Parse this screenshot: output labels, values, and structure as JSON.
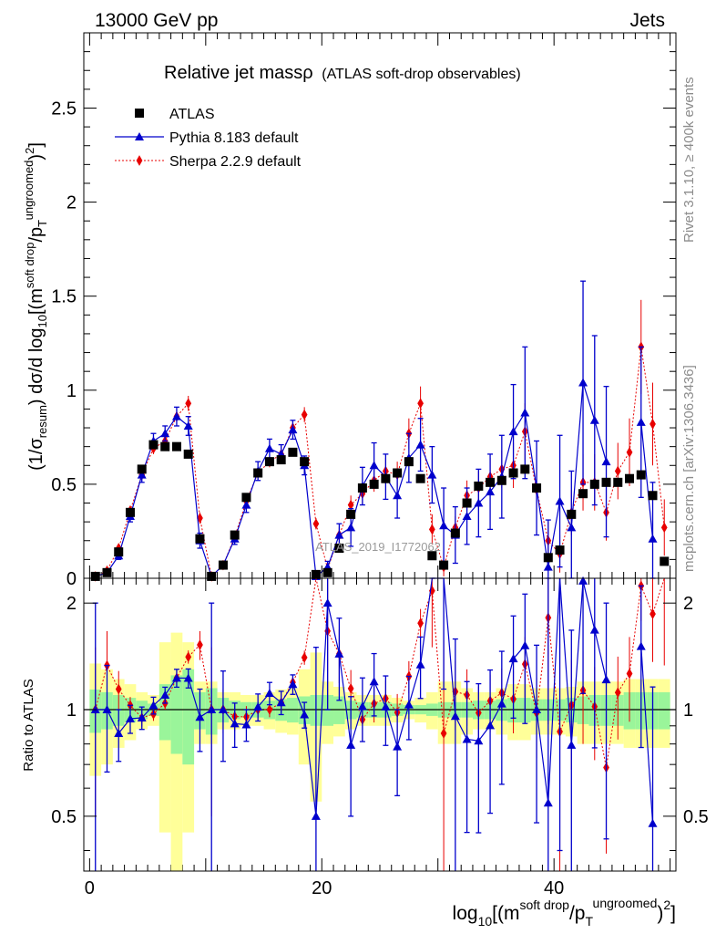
{
  "header": {
    "left": "13000 GeV pp",
    "right": "Jets",
    "title": "Relative jet mass",
    "title_symbol": "ρ",
    "title_note": "(ATLAS soft-drop observables)"
  },
  "side_labels": {
    "rivet": "Rivet 3.1.10, ≥ 400k events",
    "mcplots": "mcplots.cern.ch [arXiv:1306.3436]"
  },
  "watermark": "ATLAS_2019_I1772062",
  "axes": {
    "ylabel_main": "(1/σresum) dσ/d log10[(m soft drop/pT ungroomed)²]",
    "ylabel_main_parts": {
      "a": "(1/σ",
      "a_sub": "resum",
      "b": ") dσ/d log",
      "b_sub": "10",
      "c": "[(m",
      "c_sup": "soft drop",
      "d": "/p",
      "d_sub": "T",
      "d_sup": "ungroomed",
      "e": ")",
      "e_sup": "2",
      "f": "]"
    },
    "ylabel_ratio": "Ratio to ATLAS",
    "xlabel_parts": {
      "a": "log",
      "a_sub": "10",
      "b": "[(m",
      "b_sup": "soft drop",
      "c": "/p",
      "c_sub": "T",
      "c_sup": "ungroomed",
      "d": ")",
      "d_sup": "2",
      "e": "]"
    }
  },
  "legend": [
    {
      "label": "ATLAS",
      "style": "data"
    },
    {
      "label": "Pythia 8.183 default",
      "style": "pythia"
    },
    {
      "label": "Sherpa 2.2.9 default",
      "style": "sherpa"
    }
  ],
  "colors": {
    "data": "#000000",
    "pythia": "#0000cc",
    "sherpa": "#e80000",
    "band_inner": "#9af59a",
    "band_outer": "#ffff99"
  },
  "chart_data": {
    "type": "line",
    "xlim": [
      -0.5,
      50.5
    ],
    "main": {
      "ylim": [
        0,
        2.9
      ],
      "yticks": [
        0,
        0.5,
        1,
        1.5,
        2,
        2.5
      ],
      "ytick_labels": [
        "0",
        "0.5",
        "1",
        "1.5",
        "2",
        "2.5"
      ]
    },
    "ratio": {
      "ylim": [
        0.35,
        2.35
      ],
      "yticks": [
        0.5,
        1,
        2
      ],
      "ytick_labels": [
        "0.5",
        "1",
        "2"
      ],
      "reference": 1
    },
    "xticks": [
      0,
      20,
      40
    ],
    "xtick_labels": [
      "0",
      "20",
      "40"
    ],
    "x": [
      0.5,
      1.5,
      2.5,
      3.5,
      4.5,
      5.5,
      6.5,
      7.5,
      8.5,
      9.5,
      10.5,
      11.5,
      12.5,
      13.5,
      14.5,
      15.5,
      16.5,
      17.5,
      18.5,
      19.5,
      20.5,
      21.5,
      22.5,
      23.5,
      24.5,
      25.5,
      26.5,
      27.5,
      28.5,
      29.5,
      30.5,
      31.5,
      32.5,
      33.5,
      34.5,
      35.5,
      36.5,
      37.5,
      38.5,
      39.5,
      40.5,
      41.5,
      42.5,
      43.5,
      44.5,
      45.5,
      46.5,
      47.5,
      48.5,
      49.5
    ],
    "series": [
      {
        "name": "ATLAS",
        "values": [
          0.01,
          0.03,
          0.14,
          0.35,
          0.58,
          0.71,
          0.7,
          0.7,
          0.66,
          0.21,
          0.01,
          0.07,
          0.23,
          0.43,
          0.56,
          0.62,
          0.63,
          0.67,
          0.62,
          0.02,
          0.03,
          0.16,
          0.34,
          0.48,
          0.5,
          0.53,
          0.56,
          0.62,
          0.53,
          0.12,
          0.07,
          0.24,
          0.4,
          0.49,
          0.51,
          0.52,
          0.56,
          0.58,
          0.48,
          0.11,
          0.15,
          0.34,
          0.45,
          0.5,
          0.51,
          0.51,
          0.53,
          0.55,
          0.44,
          0.09
        ]
      },
      {
        "name": "Pythia 8.183 default",
        "values": [
          0.01,
          0.03,
          0.12,
          0.33,
          0.55,
          0.73,
          0.77,
          0.86,
          0.81,
          0.2,
          0.01,
          0.07,
          0.21,
          0.39,
          0.57,
          0.69,
          0.66,
          0.79,
          0.6,
          0.01,
          0.06,
          0.23,
          0.27,
          0.49,
          0.6,
          0.54,
          0.44,
          0.64,
          0.71,
          0.55,
          0.28,
          0.23,
          0.33,
          0.4,
          0.46,
          0.54,
          0.78,
          0.88,
          0.48,
          0.06,
          0.41,
          0.27,
          1.04,
          0.84,
          0.62,
          null,
          null,
          0.83,
          0.21,
          null
        ],
        "err": [
          0.01,
          0.01,
          0.02,
          0.03,
          0.04,
          0.04,
          0.04,
          0.05,
          0.05,
          0.04,
          0.01,
          0.02,
          0.03,
          0.04,
          0.05,
          0.05,
          0.05,
          0.05,
          0.05,
          0.02,
          0.03,
          0.06,
          0.1,
          0.1,
          0.12,
          0.12,
          0.12,
          0.13,
          0.14,
          0.15,
          0.2,
          0.15,
          0.15,
          0.18,
          0.2,
          0.22,
          0.25,
          0.35,
          0.25,
          0.25,
          0.35,
          0.3,
          0.54,
          0.45,
          0.4,
          null,
          null,
          0.4,
          0.3,
          null
        ]
      },
      {
        "name": "Sherpa 2.2.9 default",
        "values": [
          0.01,
          0.04,
          0.16,
          0.36,
          0.55,
          0.69,
          0.73,
          0.86,
          0.93,
          0.32,
          0.01,
          0.07,
          0.22,
          0.41,
          0.56,
          0.62,
          0.66,
          0.8,
          0.87,
          0.29,
          0.05,
          0.23,
          0.39,
          0.45,
          0.52,
          0.57,
          0.55,
          0.77,
          0.93,
          0.26,
          0.06,
          0.27,
          0.44,
          0.48,
          0.54,
          0.58,
          0.6,
          0.78,
          0.47,
          0.2,
          0.13,
          0.35,
          0.51,
          0.51,
          0.35,
          0.57,
          0.67,
          1.23,
          0.82,
          0.27
        ],
        "err": [
          0.005,
          0.01,
          0.02,
          0.02,
          0.03,
          0.03,
          0.03,
          0.04,
          0.04,
          0.03,
          0.005,
          0.01,
          0.02,
          0.03,
          0.03,
          0.03,
          0.04,
          0.04,
          0.04,
          0.03,
          0.02,
          0.04,
          0.05,
          0.06,
          0.06,
          0.07,
          0.07,
          0.08,
          0.09,
          0.08,
          0.05,
          0.06,
          0.08,
          0.09,
          0.1,
          0.1,
          0.12,
          0.15,
          0.12,
          0.1,
          0.1,
          0.12,
          0.15,
          0.15,
          0.15,
          0.15,
          0.18,
          0.25,
          0.22,
          0.15
        ]
      }
    ],
    "band_inner_halfwidth": [
      0.14,
      0.12,
      0.1,
      0.08,
      0.06,
      0.04,
      0.18,
      0.25,
      0.3,
      0.12,
      0.15,
      0.08,
      0.06,
      0.05,
      0.05,
      0.06,
      0.07,
      0.08,
      0.09,
      0.1,
      0.1,
      0.09,
      0.06,
      0.05,
      0.05,
      0.05,
      0.04,
      0.03,
      0.03,
      0.04,
      0.05,
      0.05,
      0.05,
      0.06,
      0.06,
      0.07,
      0.08,
      0.08,
      0.07,
      0.07,
      0.07,
      0.08,
      0.09,
      0.1,
      0.1,
      0.1,
      0.12,
      0.12,
      0.12,
      0.12
    ],
    "band_outer_halfwidth": [
      0.35,
      0.3,
      0.22,
      0.18,
      0.12,
      0.1,
      0.55,
      0.65,
      0.55,
      0.2,
      0.2,
      0.12,
      0.12,
      0.1,
      0.1,
      0.12,
      0.14,
      0.15,
      0.3,
      0.45,
      0.2,
      0.16,
      0.12,
      0.1,
      0.1,
      0.1,
      0.08,
      0.06,
      0.08,
      0.12,
      0.2,
      0.2,
      0.15,
      0.12,
      0.12,
      0.15,
      0.18,
      0.18,
      0.15,
      0.15,
      0.15,
      0.16,
      0.2,
      0.2,
      0.2,
      0.2,
      0.22,
      0.22,
      0.22,
      0.22
    ]
  }
}
